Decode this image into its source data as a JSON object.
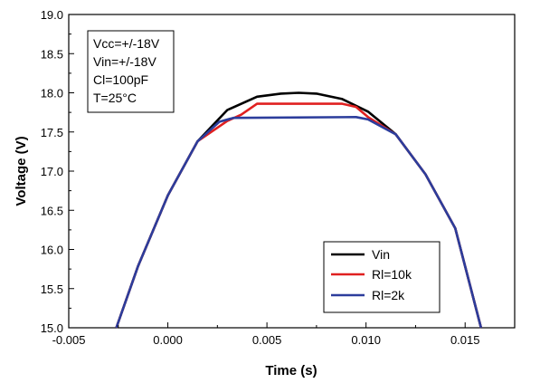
{
  "chart_data": {
    "type": "line",
    "xlabel": "Time (s)",
    "ylabel": "Voltage (V)",
    "xlim": [
      -0.005,
      0.0175
    ],
    "ylim": [
      15.0,
      19.0
    ],
    "x_ticks": [
      "-0.005",
      "0.000",
      "0.005",
      "0.010",
      "0.015"
    ],
    "y_ticks": [
      "15.0",
      "15.5",
      "16.0",
      "16.5",
      "17.0",
      "17.5",
      "18.0",
      "18.5",
      "19.0"
    ],
    "grid": false,
    "legend_position": "bottom-right",
    "annotation": [
      "Vcc=+/-18V",
      "Vin=+/-18V",
      "Cl=100pF",
      "T=25°C"
    ],
    "series": [
      {
        "name": "Vin",
        "color": "#000000",
        "x": [
          -0.0026,
          -0.0015,
          0.0,
          0.0015,
          0.003,
          0.0045,
          0.0057,
          0.0066,
          0.0075,
          0.0088,
          0.0101,
          0.0115,
          0.013,
          0.0145,
          0.0158
        ],
        "y": [
          15.0,
          15.79,
          16.69,
          17.38,
          17.78,
          17.95,
          17.99,
          18.0,
          17.99,
          17.92,
          17.76,
          17.47,
          16.96,
          16.27,
          15.0
        ]
      },
      {
        "name": "Rl=10k",
        "color": "#e02020",
        "x": [
          -0.0026,
          -0.0015,
          0.0,
          0.0015,
          0.003,
          0.0037,
          0.0045,
          0.0088,
          0.0095,
          0.0101,
          0.0115,
          0.013,
          0.0145,
          0.0158
        ],
        "y": [
          15.0,
          15.79,
          16.69,
          17.38,
          17.64,
          17.72,
          17.86,
          17.86,
          17.82,
          17.69,
          17.47,
          16.96,
          16.27,
          15.0
        ]
      },
      {
        "name": "Rl=2k",
        "color": "#2c3d9c",
        "x": [
          -0.0026,
          -0.0015,
          0.0,
          0.0015,
          0.0026,
          0.0033,
          0.0095,
          0.0101,
          0.0115,
          0.013,
          0.0145,
          0.0158
        ],
        "y": [
          15.0,
          15.79,
          16.69,
          17.38,
          17.63,
          17.68,
          17.69,
          17.66,
          17.47,
          16.96,
          16.27,
          15.0
        ]
      }
    ]
  }
}
